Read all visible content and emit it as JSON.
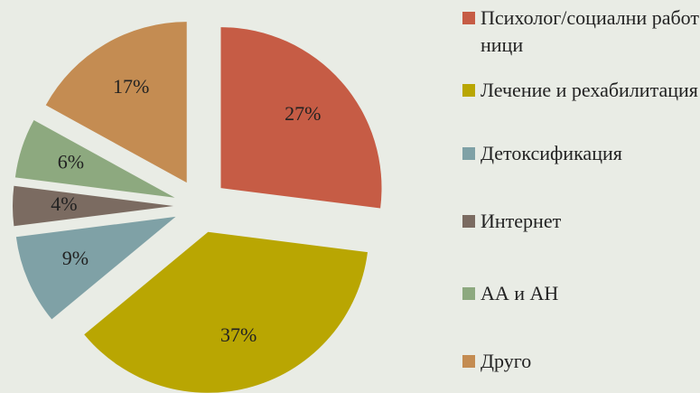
{
  "chart_data": {
    "type": "pie",
    "categories": [
      "Психолог/социални работници",
      "Лечение и рехабилитация",
      "Детоксификация",
      "Интернет",
      "АА и АН",
      "Друго"
    ],
    "values": [
      27,
      37,
      9,
      4,
      6,
      17
    ],
    "value_labels": [
      "27%",
      "37%",
      "9%",
      "4%",
      "6%",
      "17%"
    ],
    "colors": [
      "#c65c45",
      "#b9a602",
      "#7fa1a6",
      "#7b6b61",
      "#8da97f",
      "#c48c52"
    ],
    "legend": "right"
  }
}
